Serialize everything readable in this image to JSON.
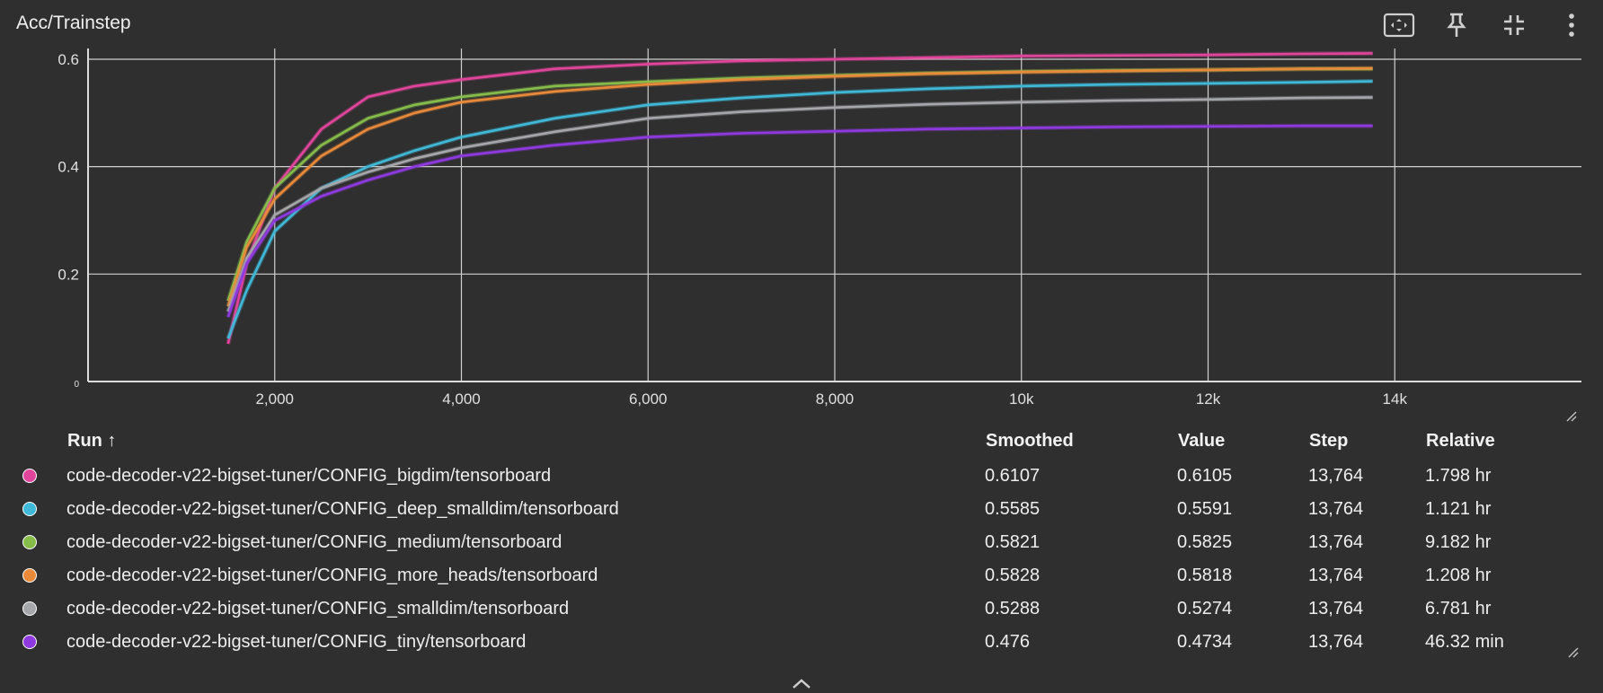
{
  "card": {
    "title": "Acc/Trainstep",
    "toolbar": [
      {
        "name": "fit-domain-icon"
      },
      {
        "name": "pin-icon"
      },
      {
        "name": "collapse-icon"
      },
      {
        "name": "more-vert-icon"
      }
    ]
  },
  "chart_data": {
    "type": "line",
    "title": "Acc/Trainstep",
    "xlabel": "",
    "ylabel": "",
    "xlim": [
      0,
      16000
    ],
    "ylim": [
      0,
      0.62
    ],
    "x_ticks": [
      2000,
      4000,
      6000,
      8000,
      10000,
      12000,
      14000
    ],
    "x_tick_labels": [
      "2,000",
      "4,000",
      "6,000",
      "8,000",
      "10k",
      "12k",
      "14k"
    ],
    "y_ticks": [
      0,
      0.2,
      0.4,
      0.6
    ],
    "y_tick_labels": [
      "0",
      "0.2",
      "0.4",
      "0.6"
    ],
    "grid": true,
    "x": [
      1500,
      1700,
      2000,
      2500,
      3000,
      3500,
      4000,
      5000,
      6000,
      7000,
      8000,
      9000,
      10000,
      11000,
      12000,
      13000,
      13764
    ],
    "series": [
      {
        "name": "code-decoder-v22-bigset-tuner/CONFIG_bigdim/tensorboard",
        "color": "#e0459b",
        "values": [
          0.07,
          0.22,
          0.36,
          0.47,
          0.53,
          0.55,
          0.562,
          0.582,
          0.591,
          0.597,
          0.6,
          0.603,
          0.606,
          0.607,
          0.608,
          0.61,
          0.611
        ]
      },
      {
        "name": "code-decoder-v22-bigset-tuner/CONFIG_deep_smalldim/tensorboard",
        "color": "#40b9d8",
        "values": [
          0.08,
          0.17,
          0.28,
          0.36,
          0.4,
          0.43,
          0.455,
          0.49,
          0.515,
          0.528,
          0.538,
          0.545,
          0.55,
          0.553,
          0.555,
          0.557,
          0.559
        ]
      },
      {
        "name": "code-decoder-v22-bigset-tuner/CONFIG_medium/tensorboard",
        "color": "#86bd4a",
        "values": [
          0.15,
          0.26,
          0.36,
          0.44,
          0.49,
          0.515,
          0.53,
          0.55,
          0.558,
          0.565,
          0.57,
          0.574,
          0.577,
          0.579,
          0.58,
          0.582,
          0.582
        ]
      },
      {
        "name": "code-decoder-v22-bigset-tuner/CONFIG_more_heads/tensorboard",
        "color": "#e88a3a",
        "values": [
          0.14,
          0.25,
          0.34,
          0.42,
          0.47,
          0.5,
          0.52,
          0.54,
          0.553,
          0.562,
          0.568,
          0.573,
          0.576,
          0.578,
          0.58,
          0.582,
          0.583
        ]
      },
      {
        "name": "code-decoder-v22-bigset-tuner/CONFIG_smalldim/tensorboard",
        "color": "#a6a7ab",
        "values": [
          0.13,
          0.23,
          0.31,
          0.36,
          0.39,
          0.415,
          0.435,
          0.465,
          0.49,
          0.502,
          0.51,
          0.516,
          0.52,
          0.523,
          0.525,
          0.528,
          0.529
        ]
      },
      {
        "name": "code-decoder-v22-bigset-tuner/CONFIG_tiny/tensorboard",
        "color": "#8f3ae0",
        "values": [
          0.12,
          0.22,
          0.3,
          0.345,
          0.375,
          0.4,
          0.42,
          0.44,
          0.455,
          0.462,
          0.466,
          0.47,
          0.472,
          0.474,
          0.475,
          0.476,
          0.476
        ]
      }
    ]
  },
  "table": {
    "headers": {
      "run": "Run ↑",
      "smoothed": "Smoothed",
      "value": "Value",
      "step": "Step",
      "relative": "Relative"
    },
    "rows": [
      {
        "run": "code-decoder-v22-bigset-tuner/CONFIG_bigdim/tensorboard",
        "color": "#e0459b",
        "smoothed": "0.6107",
        "value": "0.6105",
        "step": "13,764",
        "relative": "1.798 hr"
      },
      {
        "run": "code-decoder-v22-bigset-tuner/CONFIG_deep_smalldim/tensorboard",
        "color": "#40b9d8",
        "smoothed": "0.5585",
        "value": "0.5591",
        "step": "13,764",
        "relative": "1.121 hr"
      },
      {
        "run": "code-decoder-v22-bigset-tuner/CONFIG_medium/tensorboard",
        "color": "#86bd4a",
        "smoothed": "0.5821",
        "value": "0.5825",
        "step": "13,764",
        "relative": "9.182 hr"
      },
      {
        "run": "code-decoder-v22-bigset-tuner/CONFIG_more_heads/tensorboard",
        "color": "#e88a3a",
        "smoothed": "0.5828",
        "value": "0.5818",
        "step": "13,764",
        "relative": "1.208 hr"
      },
      {
        "run": "code-decoder-v22-bigset-tuner/CONFIG_smalldim/tensorboard",
        "color": "#a6a7ab",
        "smoothed": "0.5288",
        "value": "0.5274",
        "step": "13,764",
        "relative": "6.781 hr"
      },
      {
        "run": "code-decoder-v22-bigset-tuner/CONFIG_tiny/tensorboard",
        "color": "#8f3ae0",
        "smoothed": "0.476",
        "value": "0.4734",
        "step": "13,764",
        "relative": "46.32 min"
      }
    ]
  }
}
